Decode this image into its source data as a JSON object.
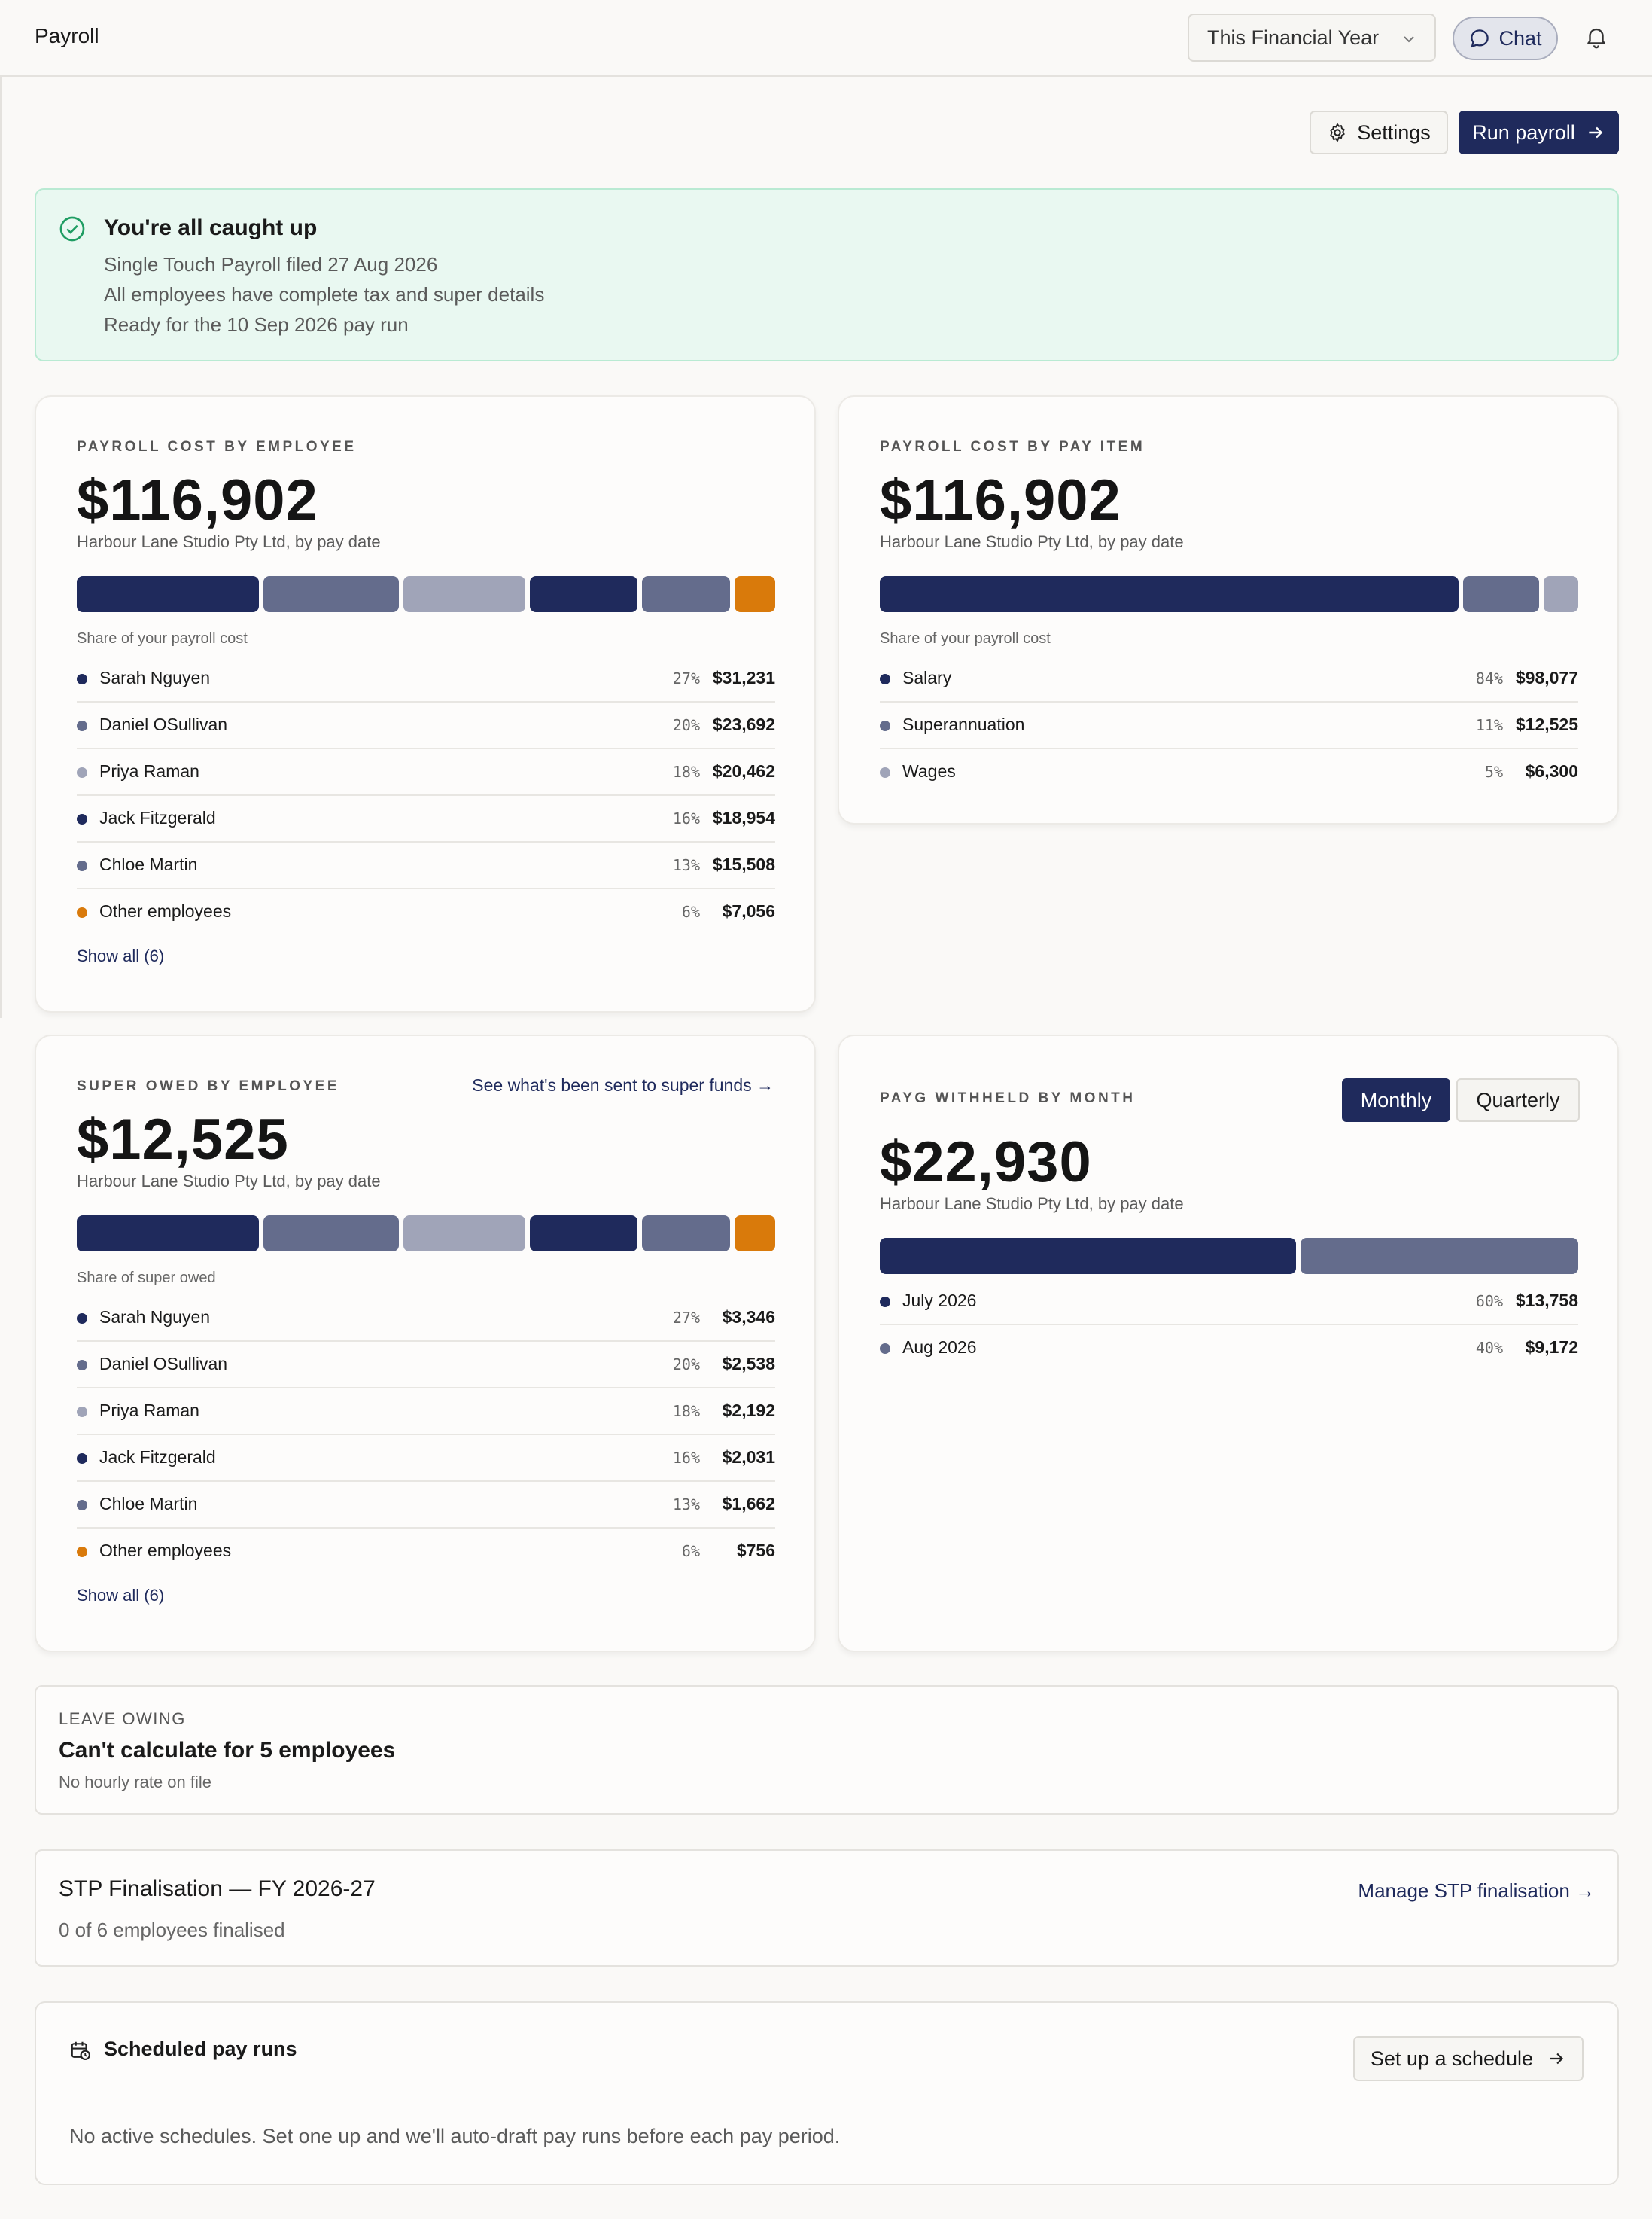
{
  "header": {
    "title": "Payroll",
    "period": "This Financial Year",
    "chat_label": "Chat"
  },
  "toolbar": {
    "settings_label": "Settings",
    "run_label": "Run payroll"
  },
  "banner": {
    "title": "You're all caught up",
    "lines": [
      "Single Touch Payroll filed 27 Aug 2026",
      "All employees have complete tax and super details",
      "Ready for the 10 Sep 2026 pay run"
    ]
  },
  "colors": {
    "navy": "#1f2a5c",
    "slate": "#646c8c",
    "lavender": "#a0a4b8",
    "orange": "#d97a0b",
    "green": "#1f9d63"
  },
  "cost_by_employee": {
    "caption": "PAYROLL COST BY EMPLOYEE",
    "total": "$116,902",
    "subtitle": "Harbour Lane Studio Pty Ltd, by pay date",
    "share_label": "Share of your payroll cost",
    "rows": [
      {
        "name": "Sarah Nguyen",
        "pct": "27%",
        "amount": "$31,231",
        "share": 27,
        "color": "#1f2a5c"
      },
      {
        "name": "Daniel OSullivan",
        "pct": "20%",
        "amount": "$23,692",
        "share": 20,
        "color": "#646c8c"
      },
      {
        "name": "Priya Raman",
        "pct": "18%",
        "amount": "$20,462",
        "share": 18,
        "color": "#a0a4b8"
      },
      {
        "name": "Jack Fitzgerald",
        "pct": "16%",
        "amount": "$18,954",
        "share": 16,
        "color": "#1f2a5c"
      },
      {
        "name": "Chloe Martin",
        "pct": "13%",
        "amount": "$15,508",
        "share": 13,
        "color": "#646c8c"
      },
      {
        "name": "Other employees",
        "pct": "6%",
        "amount": "$7,056",
        "share": 6,
        "color": "#d97a0b"
      }
    ],
    "show_all": "Show all (6)"
  },
  "cost_by_item": {
    "caption": "PAYROLL COST BY PAY ITEM",
    "total": "$116,902",
    "subtitle": "Harbour Lane Studio Pty Ltd, by pay date",
    "share_label": "Share of your payroll cost",
    "rows": [
      {
        "name": "Salary",
        "pct": "84%",
        "amount": "$98,077",
        "share": 84,
        "color": "#1f2a5c"
      },
      {
        "name": "Superannuation",
        "pct": "11%",
        "amount": "$12,525",
        "share": 11,
        "color": "#646c8c"
      },
      {
        "name": "Wages",
        "pct": "5%",
        "amount": "$6,300",
        "share": 5,
        "color": "#a0a4b8"
      }
    ]
  },
  "super_owed": {
    "caption": "SUPER OWED BY EMPLOYEE",
    "link": "See what's been sent to super funds →",
    "total": "$12,525",
    "subtitle": "Harbour Lane Studio Pty Ltd, by pay date",
    "share_label": "Share of super owed",
    "rows": [
      {
        "name": "Sarah Nguyen",
        "pct": "27%",
        "amount": "$3,346",
        "share": 27,
        "color": "#1f2a5c"
      },
      {
        "name": "Daniel OSullivan",
        "pct": "20%",
        "amount": "$2,538",
        "share": 20,
        "color": "#646c8c"
      },
      {
        "name": "Priya Raman",
        "pct": "18%",
        "amount": "$2,192",
        "share": 18,
        "color": "#a0a4b8"
      },
      {
        "name": "Jack Fitzgerald",
        "pct": "16%",
        "amount": "$2,031",
        "share": 16,
        "color": "#1f2a5c"
      },
      {
        "name": "Chloe Martin",
        "pct": "13%",
        "amount": "$1,662",
        "share": 13,
        "color": "#646c8c"
      },
      {
        "name": "Other employees",
        "pct": "6%",
        "amount": "$756",
        "share": 6,
        "color": "#d97a0b"
      }
    ],
    "show_all": "Show all (6)"
  },
  "payg": {
    "caption": "PAYG WITHHELD BY MONTH",
    "toggle": [
      "Monthly",
      "Quarterly"
    ],
    "selected": "Monthly",
    "total": "$22,930",
    "subtitle": "Harbour Lane Studio Pty Ltd, by pay date",
    "rows": [
      {
        "name": "July 2026",
        "pct": "60%",
        "amount": "$13,758",
        "share": 60,
        "color": "#1f2a5c"
      },
      {
        "name": "Aug 2026",
        "pct": "40%",
        "amount": "$9,172",
        "share": 40,
        "color": "#646c8c"
      }
    ]
  },
  "leave": {
    "kicker": "LEAVE OWING",
    "title": "Can't calculate for 5 employees",
    "subtitle": "No hourly rate on file"
  },
  "stp": {
    "title": "STP Finalisation — FY 2026-27",
    "subtitle": "0 of 6 employees finalised",
    "link": "Manage STP finalisation →"
  },
  "schedule": {
    "title": "Scheduled pay runs",
    "button": "Set up a schedule",
    "empty": "No active schedules. Set one up and we'll auto-draft pay runs before each pay period."
  }
}
